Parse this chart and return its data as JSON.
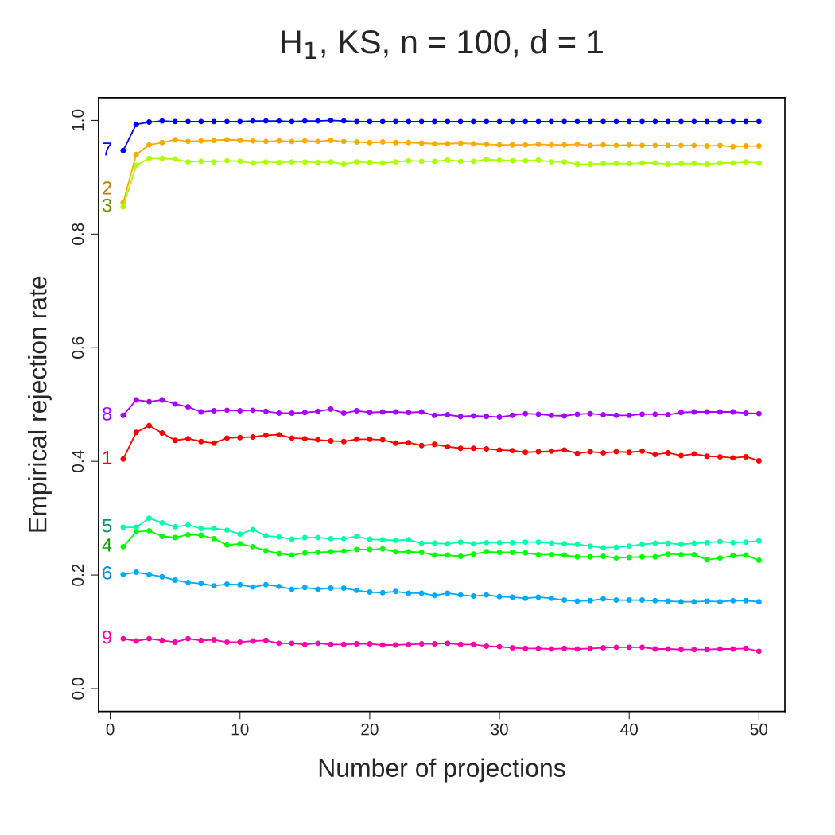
{
  "chart_data": {
    "type": "line",
    "title": "H$_{1}$, KS, n = 100, d = 1",
    "xlabel": "Number of projections",
    "ylabel": "Empirical rejection rate",
    "x": [
      1,
      2,
      3,
      4,
      5,
      6,
      7,
      8,
      9,
      10,
      11,
      12,
      13,
      14,
      15,
      16,
      17,
      18,
      19,
      20,
      21,
      22,
      23,
      24,
      25,
      26,
      27,
      28,
      29,
      30,
      31,
      32,
      33,
      34,
      35,
      36,
      37,
      38,
      39,
      40,
      41,
      42,
      43,
      44,
      45,
      46,
      47,
      48,
      49,
      50
    ],
    "xlim": [
      -0.9,
      52
    ],
    "xticks": [
      0,
      10,
      20,
      30,
      40,
      50
    ],
    "ylim": [
      -0.04,
      1.04
    ],
    "yticks": [
      {
        "value": 0,
        "label": "0.0"
      },
      {
        "value": 0.2,
        "label": "0.2"
      },
      {
        "value": 0.4,
        "label": "0.4"
      },
      {
        "value": 0.6,
        "label": "0.6"
      },
      {
        "value": 0.8,
        "label": "0.8"
      },
      {
        "value": 1,
        "label": "1.0"
      }
    ],
    "grid": false,
    "legend": false,
    "marker": "circle",
    "line_style": "solid",
    "series": [
      {
        "name": "1",
        "color": "#ff0000",
        "values": [
          0.404,
          0.451,
          0.463,
          0.45,
          0.437,
          0.44,
          0.435,
          0.432,
          0.441,
          0.442,
          0.443,
          0.446,
          0.447,
          0.441,
          0.44,
          0.438,
          0.436,
          0.435,
          0.439,
          0.439,
          0.438,
          0.432,
          0.433,
          0.428,
          0.43,
          0.426,
          0.423,
          0.423,
          0.422,
          0.42,
          0.419,
          0.416,
          0.417,
          0.418,
          0.42,
          0.414,
          0.417,
          0.415,
          0.417,
          0.416,
          0.418,
          0.412,
          0.415,
          0.41,
          0.413,
          0.409,
          0.408,
          0.406,
          0.408,
          0.401
        ]
      },
      {
        "name": "2",
        "color": "#ffaa00",
        "values": [
          0.855,
          0.94,
          0.957,
          0.961,
          0.966,
          0.963,
          0.964,
          0.965,
          0.966,
          0.965,
          0.964,
          0.963,
          0.964,
          0.963,
          0.964,
          0.963,
          0.965,
          0.963,
          0.962,
          0.961,
          0.962,
          0.961,
          0.961,
          0.96,
          0.959,
          0.959,
          0.96,
          0.959,
          0.958,
          0.957,
          0.957,
          0.957,
          0.958,
          0.957,
          0.957,
          0.958,
          0.956,
          0.957,
          0.956,
          0.957,
          0.956,
          0.956,
          0.956,
          0.956,
          0.956,
          0.955,
          0.956,
          0.954,
          0.955,
          0.955
        ]
      },
      {
        "name": "3",
        "color": "#aaff00",
        "values": [
          0.848,
          0.921,
          0.933,
          0.933,
          0.932,
          0.927,
          0.928,
          0.927,
          0.929,
          0.928,
          0.925,
          0.927,
          0.926,
          0.927,
          0.927,
          0.926,
          0.927,
          0.923,
          0.927,
          0.926,
          0.925,
          0.927,
          0.929,
          0.928,
          0.928,
          0.93,
          0.928,
          0.928,
          0.931,
          0.93,
          0.929,
          0.929,
          0.93,
          0.927,
          0.927,
          0.923,
          0.923,
          0.924,
          0.924,
          0.924,
          0.925,
          0.925,
          0.923,
          0.924,
          0.924,
          0.923,
          0.925,
          0.925,
          0.927,
          0.925
        ]
      },
      {
        "name": "4",
        "color": "#00ff00",
        "values": [
          0.25,
          0.276,
          0.278,
          0.268,
          0.266,
          0.271,
          0.27,
          0.264,
          0.253,
          0.255,
          0.25,
          0.243,
          0.238,
          0.235,
          0.239,
          0.24,
          0.241,
          0.242,
          0.245,
          0.245,
          0.246,
          0.241,
          0.241,
          0.24,
          0.235,
          0.235,
          0.233,
          0.237,
          0.241,
          0.24,
          0.24,
          0.239,
          0.236,
          0.236,
          0.235,
          0.232,
          0.232,
          0.233,
          0.23,
          0.231,
          0.232,
          0.232,
          0.237,
          0.236,
          0.236,
          0.227,
          0.23,
          0.234,
          0.235,
          0.226
        ]
      },
      {
        "name": "5",
        "color": "#00ffaa",
        "values": [
          0.284,
          0.284,
          0.3,
          0.292,
          0.285,
          0.288,
          0.282,
          0.282,
          0.279,
          0.272,
          0.28,
          0.269,
          0.267,
          0.263,
          0.266,
          0.266,
          0.264,
          0.264,
          0.268,
          0.263,
          0.262,
          0.261,
          0.262,
          0.256,
          0.256,
          0.255,
          0.258,
          0.255,
          0.257,
          0.257,
          0.257,
          0.258,
          0.258,
          0.256,
          0.255,
          0.254,
          0.251,
          0.248,
          0.249,
          0.251,
          0.254,
          0.256,
          0.256,
          0.254,
          0.256,
          0.257,
          0.259,
          0.257,
          0.258,
          0.26
        ]
      },
      {
        "name": "6",
        "color": "#00aaff",
        "values": [
          0.201,
          0.205,
          0.201,
          0.197,
          0.191,
          0.187,
          0.185,
          0.181,
          0.184,
          0.183,
          0.179,
          0.183,
          0.18,
          0.175,
          0.178,
          0.175,
          0.177,
          0.177,
          0.173,
          0.17,
          0.169,
          0.171,
          0.168,
          0.168,
          0.164,
          0.168,
          0.165,
          0.163,
          0.165,
          0.162,
          0.161,
          0.159,
          0.161,
          0.159,
          0.156,
          0.154,
          0.155,
          0.158,
          0.156,
          0.156,
          0.156,
          0.155,
          0.154,
          0.153,
          0.153,
          0.154,
          0.153,
          0.155,
          0.155,
          0.153
        ]
      },
      {
        "name": "7",
        "color": "#0000ff",
        "values": [
          0.947,
          0.993,
          0.997,
          0.999,
          0.998,
          0.998,
          0.998,
          0.998,
          0.998,
          0.998,
          0.999,
          0.999,
          0.999,
          0.998,
          0.999,
          0.999,
          1.0,
          0.999,
          0.998,
          0.998,
          0.998,
          0.998,
          0.998,
          0.998,
          0.998,
          0.998,
          0.998,
          0.998,
          0.998,
          0.998,
          0.998,
          0.998,
          0.998,
          0.998,
          0.998,
          0.998,
          0.998,
          0.998,
          0.998,
          0.998,
          0.998,
          0.998,
          0.998,
          0.998,
          0.998,
          0.998,
          0.998,
          0.998,
          0.998,
          0.998
        ]
      },
      {
        "name": "8",
        "color": "#aa00ff",
        "values": [
          0.481,
          0.508,
          0.505,
          0.508,
          0.501,
          0.496,
          0.487,
          0.489,
          0.49,
          0.489,
          0.49,
          0.488,
          0.485,
          0.485,
          0.486,
          0.488,
          0.492,
          0.485,
          0.489,
          0.486,
          0.487,
          0.487,
          0.486,
          0.487,
          0.481,
          0.482,
          0.479,
          0.48,
          0.479,
          0.478,
          0.481,
          0.484,
          0.483,
          0.481,
          0.48,
          0.483,
          0.484,
          0.482,
          0.481,
          0.481,
          0.483,
          0.483,
          0.482,
          0.486,
          0.487,
          0.487,
          0.487,
          0.487,
          0.485,
          0.484
        ]
      },
      {
        "name": "9",
        "color": "#ff00aa",
        "values": [
          0.088,
          0.084,
          0.088,
          0.085,
          0.082,
          0.088,
          0.085,
          0.086,
          0.082,
          0.082,
          0.084,
          0.085,
          0.08,
          0.08,
          0.078,
          0.08,
          0.078,
          0.078,
          0.079,
          0.079,
          0.077,
          0.077,
          0.078,
          0.079,
          0.079,
          0.08,
          0.078,
          0.078,
          0.075,
          0.074,
          0.072,
          0.071,
          0.071,
          0.07,
          0.071,
          0.07,
          0.071,
          0.072,
          0.073,
          0.073,
          0.073,
          0.07,
          0.07,
          0.069,
          0.069,
          0.069,
          0.07,
          0.07,
          0.071,
          0.066
        ]
      }
    ]
  }
}
